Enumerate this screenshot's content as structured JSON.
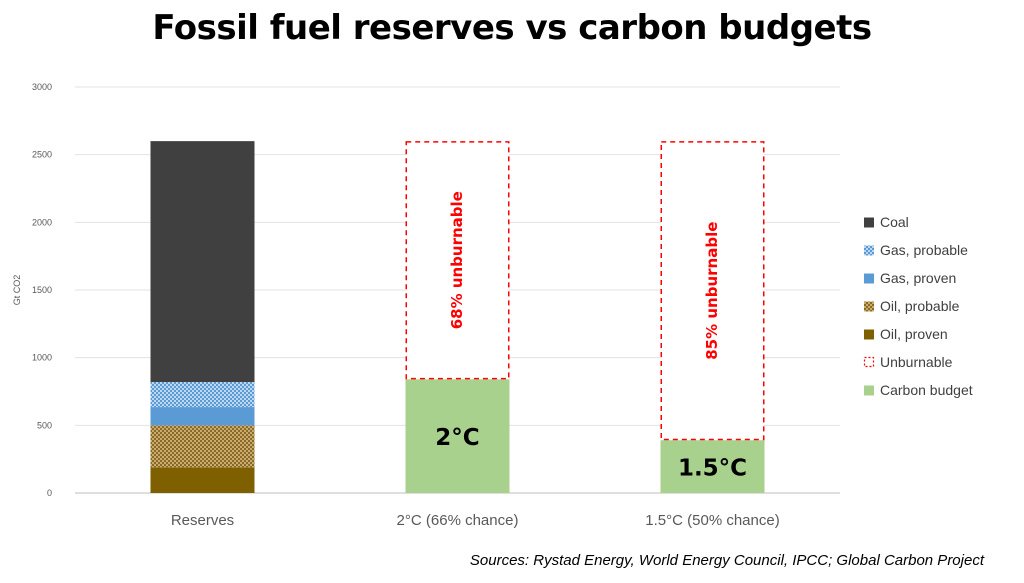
{
  "chart_data": {
    "type": "bar",
    "title": "Fossil fuel reserves vs carbon budgets",
    "ylabel": "Gt CO2",
    "ylim": [
      0,
      3000
    ],
    "yticks": [
      0,
      500,
      1000,
      1500,
      2000,
      2500,
      3000
    ],
    "grid": true,
    "legend_position": "right",
    "categories": [
      "Reserves",
      "2°C (66% chance)",
      "1.5°C (50% chance)"
    ],
    "series": [
      {
        "name": "Oil, proven",
        "color": "#7f6000",
        "pattern": "solid",
        "values": [
          190,
          0,
          0
        ]
      },
      {
        "name": "Oil, probable",
        "color": "#b8954a",
        "pattern": "dotted",
        "values": [
          310,
          0,
          0
        ]
      },
      {
        "name": "Gas, proven",
        "color": "#5b9bd5",
        "pattern": "solid",
        "values": [
          135,
          0,
          0
        ]
      },
      {
        "name": "Gas, probable",
        "color": "#9dc3e6",
        "pattern": "dotted",
        "values": [
          185,
          0,
          0
        ]
      },
      {
        "name": "Coal",
        "color": "#404040",
        "pattern": "solid",
        "values": [
          1780,
          0,
          0
        ]
      },
      {
        "name": "Carbon budget",
        "color": "#a9d18e",
        "pattern": "solid",
        "values": [
          0,
          840,
          390
        ]
      },
      {
        "name": "Unburnable",
        "color": "#ff0000",
        "pattern": "dashed-outline",
        "values": [
          0,
          1760,
          2210
        ]
      }
    ],
    "legend_order": [
      "Coal",
      "Gas, probable",
      "Gas, proven",
      "Oil, probable",
      "Oil, proven",
      "Unburnable",
      "Carbon budget"
    ],
    "annotations": [
      {
        "category": "2°C (66% chance)",
        "series": "Unburnable",
        "text": "68% unburnable",
        "color": "#ff0000"
      },
      {
        "category": "1.5°C (50% chance)",
        "series": "Unburnable",
        "text": "85% unburnable",
        "color": "#ff0000"
      },
      {
        "category": "2°C (66% chance)",
        "series": "Carbon budget",
        "text": "2°C",
        "color": "#000000"
      },
      {
        "category": "1.5°C (50% chance)",
        "series": "Carbon budget",
        "text": "1.5°C",
        "color": "#000000"
      }
    ]
  },
  "source": "Sources: Rystad Energy, World Energy Council, IPCC; Global Carbon Project"
}
